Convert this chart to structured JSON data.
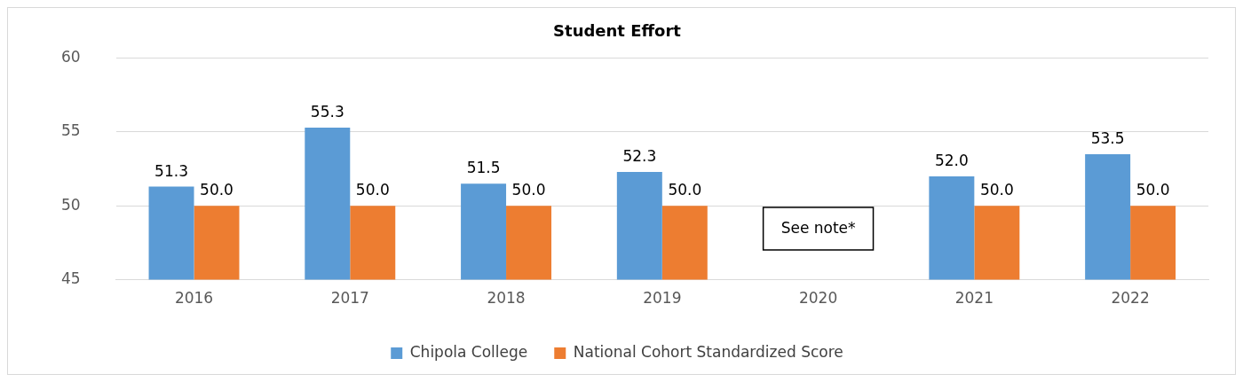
{
  "chart_data": {
    "type": "bar",
    "title": "Student Effort",
    "categories": [
      "2016",
      "2017",
      "2018",
      "2019",
      "2020",
      "2021",
      "2022"
    ],
    "series": [
      {
        "name": "Chipola College",
        "color": "#5b9bd5",
        "values": [
          51.3,
          55.3,
          51.5,
          52.3,
          null,
          52.0,
          53.5
        ],
        "value_labels": [
          "51.3",
          "55.3",
          "51.5",
          "52.3",
          null,
          "52.0",
          "53.5"
        ]
      },
      {
        "name": "National Cohort Standardized Score",
        "color": "#ed7d31",
        "values": [
          50,
          50,
          50,
          50,
          null,
          50,
          50
        ],
        "value_labels": [
          "50.0",
          "50.0",
          "50.0",
          "50.0",
          null,
          "50.0",
          "50.0"
        ]
      }
    ],
    "ylim": [
      45,
      60
    ],
    "yticks": [
      45,
      50,
      55,
      60
    ],
    "grid": "y",
    "legend": "bottom",
    "annotations": [
      "See note*"
    ]
  }
}
